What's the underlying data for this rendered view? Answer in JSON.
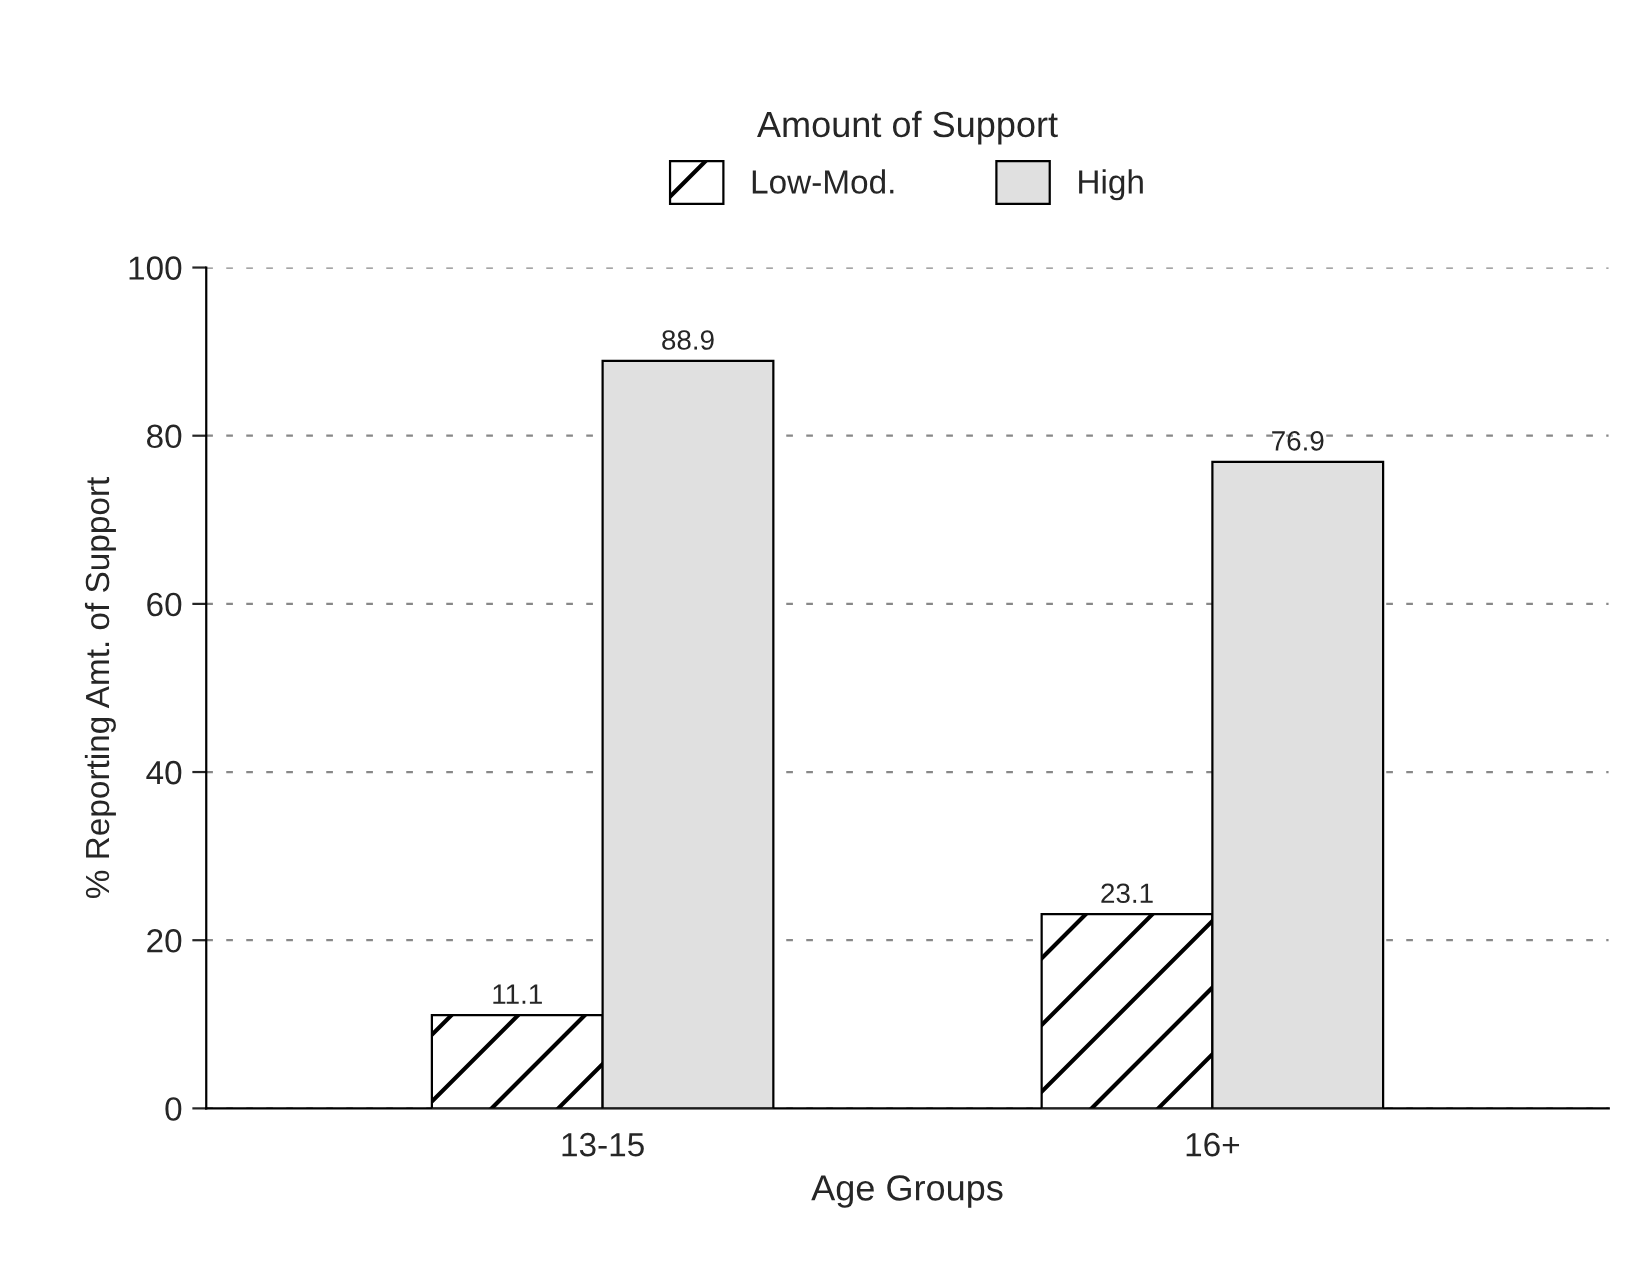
{
  "chart_data": {
    "type": "bar",
    "xlabel": "Age Groups",
    "ylabel": "% Reporting Amt. of Support",
    "legend_title": "Amount of Support",
    "categories": [
      "13-15",
      "16+"
    ],
    "series": [
      {
        "name": "Low-Mod.",
        "color": "#ffffff",
        "values": [
          11.1,
          23.1
        ]
      },
      {
        "name": "High",
        "color": "#e0e0e0",
        "values": [
          88.9,
          76.9
        ]
      }
    ],
    "ylim": [
      0,
      100
    ],
    "yticks": [
      0,
      20,
      40,
      60,
      80,
      100
    ],
    "grid": "y",
    "legend": "top",
    "data_labels": true
  }
}
